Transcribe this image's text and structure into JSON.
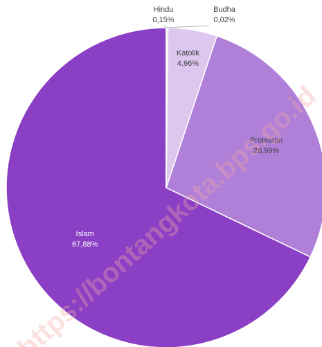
{
  "chart_data": {
    "type": "pie",
    "slices": [
      {
        "label": "Islam",
        "value": 67.88,
        "display": "67,88%",
        "color": "#8a3fc4"
      },
      {
        "label": "Protestan",
        "value": 26.99,
        "display": "26,99%",
        "color": "#b07fd8"
      },
      {
        "label": "Katolik",
        "value": 4.96,
        "display": "4,96%",
        "color": "#ddc7ee"
      },
      {
        "label": "Hindu",
        "value": 0.15,
        "display": "0,15%",
        "color": "#e8dcf3"
      },
      {
        "label": "Budha",
        "value": 0.02,
        "display": "0,02%",
        "color": "#efe6f7"
      }
    ],
    "start_angle_deg": 0,
    "direction": "clockwise",
    "legend": "none"
  },
  "watermark": "https://bontangkota.bps.go.id"
}
